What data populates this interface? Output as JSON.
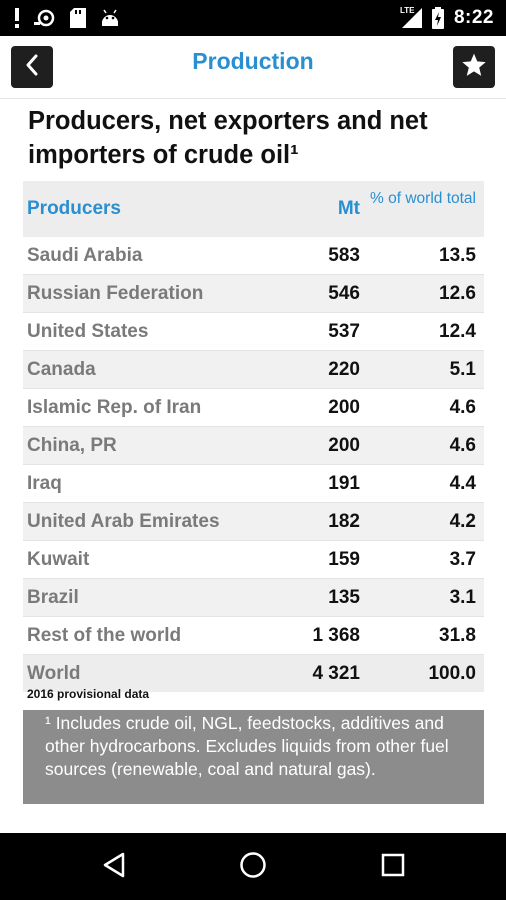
{
  "status_bar": {
    "time": "8:22",
    "network": "LTE",
    "icons": [
      "notification-exclamation-icon",
      "cast-icon",
      "sd-card-icon",
      "android-icon",
      "signal-icon",
      "battery-charging-icon"
    ]
  },
  "header": {
    "title": "Production",
    "back_icon": "chevron-left-icon",
    "favorite_icon": "star-icon"
  },
  "page": {
    "title": "Producers, net exporters and net importers of crude oil¹"
  },
  "table": {
    "columns": [
      "Producers",
      "Mt",
      "% of world total"
    ],
    "rows": [
      {
        "name": "Saudi Arabia",
        "mt": "583",
        "pct": "13.5"
      },
      {
        "name": "Russian Federation",
        "mt": "546",
        "pct": "12.6"
      },
      {
        "name": "United States",
        "mt": "537",
        "pct": "12.4"
      },
      {
        "name": "Canada",
        "mt": "220",
        "pct": "5.1"
      },
      {
        "name": "Islamic Rep. of Iran",
        "mt": "200",
        "pct": "4.6"
      },
      {
        "name": "China, PR",
        "mt": "200",
        "pct": "4.6"
      },
      {
        "name": "Iraq",
        "mt": "191",
        "pct": "4.4"
      },
      {
        "name": "United Arab Emirates",
        "mt": "182",
        "pct": "4.2"
      },
      {
        "name": "Kuwait",
        "mt": "159",
        "pct": "3.7"
      },
      {
        "name": "Brazil",
        "mt": "135",
        "pct": "3.1"
      },
      {
        "name": "Rest of the world",
        "mt": "1 368",
        "pct": "31.8"
      }
    ],
    "total": {
      "name": "World",
      "mt": "4 321",
      "pct": "100.0"
    },
    "note": "2016 provisional data"
  },
  "footnote": "¹ Includes crude oil, NGL, feedstocks, additives and other hydrocarbons. Excludes liquids from other fuel sources (renewable, coal and natural gas).",
  "nav_bar": {
    "icons": [
      "back-triangle-icon",
      "home-circle-icon",
      "recents-square-icon"
    ]
  },
  "colors": {
    "accent": "#2a8fd1",
    "row_label": "#7a7a7a",
    "footnote_bg": "#8c8c8c",
    "button_bg": "#1f1f1f"
  }
}
